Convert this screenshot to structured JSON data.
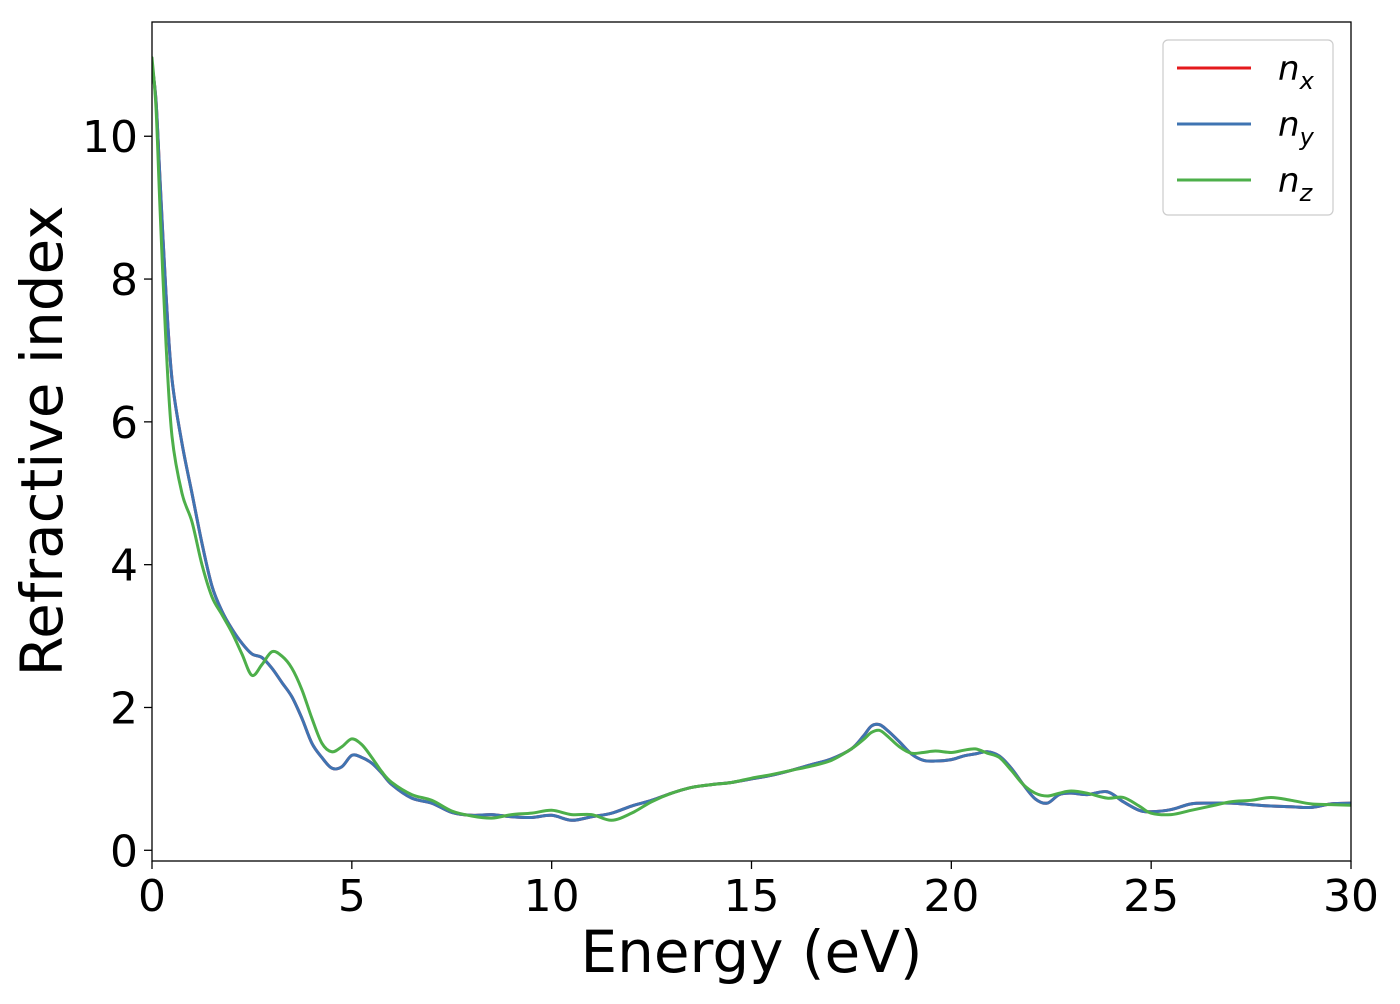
{
  "chart_data": {
    "type": "line",
    "title": "",
    "xlabel": "Energy (eV)",
    "ylabel": "Refractive index",
    "xlim": [
      0,
      30
    ],
    "ylim": [
      -0.15,
      11.6
    ],
    "xticks": [
      0,
      5,
      10,
      15,
      20,
      25,
      30
    ],
    "yticks": [
      0,
      2,
      4,
      6,
      8,
      10
    ],
    "grid": false,
    "legend": "top-right",
    "series": [
      {
        "name": "n_x",
        "legend_base": "n",
        "legend_sub": "x",
        "color": "#e41a1c",
        "x": [
          0,
          0.1,
          0.2,
          0.35,
          0.5,
          0.75,
          1.0,
          1.25,
          1.5,
          1.75,
          2.0,
          2.25,
          2.5,
          2.75,
          3.0,
          3.25,
          3.5,
          3.75,
          4.0,
          4.25,
          4.5,
          4.75,
          5.0,
          5.25,
          5.5,
          5.75,
          6.0,
          6.5,
          7.0,
          7.5,
          8.0,
          8.5,
          9.0,
          9.5,
          10.0,
          10.5,
          11.0,
          11.5,
          12.0,
          12.5,
          13.0,
          13.5,
          14.0,
          14.5,
          15.0,
          15.5,
          16.0,
          16.5,
          17.0,
          17.5,
          17.8,
          18.0,
          18.2,
          18.4,
          18.7,
          19.0,
          19.3,
          19.6,
          20.0,
          20.3,
          20.6,
          20.9,
          21.2,
          21.5,
          21.8,
          22.1,
          22.4,
          22.7,
          23.0,
          23.4,
          23.9,
          24.3,
          24.7,
          25.0,
          25.5,
          26.0,
          26.5,
          27.0,
          27.5,
          28.0,
          28.5,
          29.0,
          29.5,
          30.0
        ],
        "values": [
          11.0,
          10.5,
          9.4,
          7.8,
          6.6,
          5.7,
          5.0,
          4.3,
          3.7,
          3.35,
          3.1,
          2.9,
          2.75,
          2.7,
          2.55,
          2.35,
          2.15,
          1.85,
          1.5,
          1.3,
          1.15,
          1.17,
          1.33,
          1.3,
          1.22,
          1.08,
          0.92,
          0.73,
          0.66,
          0.53,
          0.49,
          0.5,
          0.47,
          0.46,
          0.49,
          0.42,
          0.47,
          0.52,
          0.62,
          0.7,
          0.8,
          0.88,
          0.92,
          0.95,
          1.0,
          1.05,
          1.12,
          1.2,
          1.28,
          1.42,
          1.6,
          1.74,
          1.76,
          1.68,
          1.52,
          1.35,
          1.26,
          1.25,
          1.27,
          1.32,
          1.35,
          1.38,
          1.32,
          1.15,
          0.92,
          0.72,
          0.66,
          0.78,
          0.8,
          0.78,
          0.82,
          0.68,
          0.56,
          0.54,
          0.57,
          0.65,
          0.66,
          0.66,
          0.64,
          0.62,
          0.61,
          0.6,
          0.65,
          0.66
        ]
      },
      {
        "name": "n_y",
        "legend_base": "n",
        "legend_sub": "y",
        "color": "#3f74b2",
        "x": [
          0,
          0.1,
          0.2,
          0.35,
          0.5,
          0.75,
          1.0,
          1.25,
          1.5,
          1.75,
          2.0,
          2.25,
          2.5,
          2.75,
          3.0,
          3.25,
          3.5,
          3.75,
          4.0,
          4.25,
          4.5,
          4.75,
          5.0,
          5.25,
          5.5,
          5.75,
          6.0,
          6.5,
          7.0,
          7.5,
          8.0,
          8.5,
          9.0,
          9.5,
          10.0,
          10.5,
          11.0,
          11.5,
          12.0,
          12.5,
          13.0,
          13.5,
          14.0,
          14.5,
          15.0,
          15.5,
          16.0,
          16.5,
          17.0,
          17.5,
          17.8,
          18.0,
          18.2,
          18.4,
          18.7,
          19.0,
          19.3,
          19.6,
          20.0,
          20.3,
          20.6,
          20.9,
          21.2,
          21.5,
          21.8,
          22.1,
          22.4,
          22.7,
          23.0,
          23.4,
          23.9,
          24.3,
          24.7,
          25.0,
          25.5,
          26.0,
          26.5,
          27.0,
          27.5,
          28.0,
          28.5,
          29.0,
          29.5,
          30.0
        ],
        "values": [
          11.0,
          10.5,
          9.4,
          7.8,
          6.6,
          5.7,
          5.0,
          4.3,
          3.7,
          3.35,
          3.1,
          2.9,
          2.75,
          2.7,
          2.55,
          2.35,
          2.15,
          1.85,
          1.5,
          1.3,
          1.15,
          1.17,
          1.33,
          1.3,
          1.22,
          1.08,
          0.92,
          0.73,
          0.66,
          0.53,
          0.49,
          0.5,
          0.47,
          0.46,
          0.49,
          0.42,
          0.47,
          0.52,
          0.62,
          0.7,
          0.8,
          0.88,
          0.92,
          0.95,
          1.0,
          1.05,
          1.12,
          1.2,
          1.28,
          1.42,
          1.6,
          1.74,
          1.76,
          1.68,
          1.52,
          1.35,
          1.26,
          1.25,
          1.27,
          1.32,
          1.35,
          1.38,
          1.32,
          1.15,
          0.92,
          0.72,
          0.66,
          0.78,
          0.8,
          0.78,
          0.82,
          0.68,
          0.56,
          0.54,
          0.57,
          0.65,
          0.66,
          0.66,
          0.64,
          0.62,
          0.61,
          0.6,
          0.65,
          0.66
        ]
      },
      {
        "name": "n_z",
        "legend_base": "n",
        "legend_sub": "z",
        "color": "#4daf4a",
        "x": [
          0,
          0.1,
          0.2,
          0.35,
          0.5,
          0.75,
          1.0,
          1.25,
          1.5,
          1.75,
          2.0,
          2.25,
          2.5,
          2.75,
          3.0,
          3.25,
          3.5,
          3.75,
          4.0,
          4.25,
          4.5,
          4.75,
          5.0,
          5.25,
          5.5,
          5.75,
          6.0,
          6.5,
          7.0,
          7.5,
          8.0,
          8.5,
          9.0,
          9.5,
          10.0,
          10.5,
          11.0,
          11.5,
          12.0,
          12.5,
          13.0,
          13.5,
          14.0,
          14.5,
          15.0,
          15.5,
          16.0,
          16.5,
          17.0,
          17.5,
          17.8,
          18.0,
          18.2,
          18.4,
          18.7,
          19.0,
          19.3,
          19.6,
          20.0,
          20.3,
          20.6,
          20.9,
          21.2,
          21.5,
          21.8,
          22.1,
          22.4,
          22.7,
          23.0,
          23.4,
          23.9,
          24.3,
          24.7,
          25.0,
          25.5,
          26.0,
          26.5,
          27.0,
          27.5,
          28.0,
          28.5,
          29.0,
          29.5,
          30.0
        ],
        "values": [
          11.1,
          10.4,
          9.0,
          7.1,
          5.8,
          5.0,
          4.6,
          4.0,
          3.55,
          3.3,
          3.05,
          2.75,
          2.45,
          2.6,
          2.78,
          2.72,
          2.55,
          2.25,
          1.85,
          1.5,
          1.38,
          1.45,
          1.56,
          1.48,
          1.3,
          1.1,
          0.95,
          0.78,
          0.7,
          0.55,
          0.48,
          0.45,
          0.5,
          0.52,
          0.56,
          0.5,
          0.5,
          0.42,
          0.52,
          0.68,
          0.8,
          0.88,
          0.92,
          0.95,
          1.01,
          1.06,
          1.12,
          1.18,
          1.26,
          1.42,
          1.55,
          1.65,
          1.68,
          1.6,
          1.45,
          1.36,
          1.37,
          1.39,
          1.37,
          1.4,
          1.42,
          1.36,
          1.3,
          1.12,
          0.92,
          0.8,
          0.76,
          0.8,
          0.83,
          0.8,
          0.73,
          0.74,
          0.62,
          0.52,
          0.5,
          0.56,
          0.62,
          0.68,
          0.7,
          0.74,
          0.7,
          0.65,
          0.64,
          0.63
        ]
      }
    ]
  }
}
